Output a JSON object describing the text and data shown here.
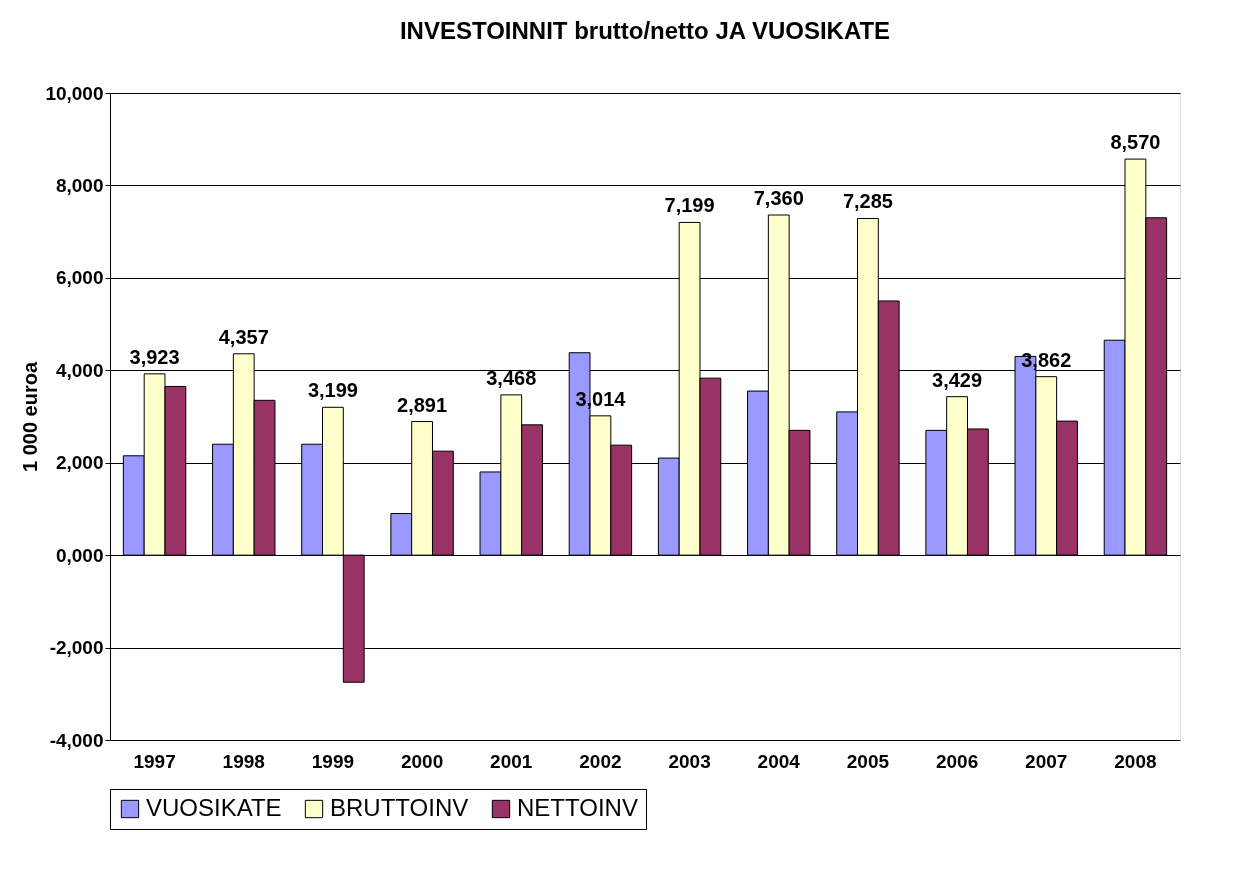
{
  "chart_data": {
    "type": "bar",
    "title": "INVESTOINNIT brutto/netto JA VUOSIKATE",
    "ylabel": "1 000 euroa",
    "categories": [
      "1997",
      "1998",
      "1999",
      "2000",
      "2001",
      "2002",
      "2003",
      "2004",
      "2005",
      "2006",
      "2007",
      "2008"
    ],
    "series": [
      {
        "name": "VUOSIKATE",
        "color": "#9999ff",
        "values": [
          2150,
          2400,
          2400,
          900,
          1800,
          4380,
          2100,
          3550,
          3100,
          2700,
          4300,
          4650
        ]
      },
      {
        "name": "BRUTTOINV",
        "color": "#ffffcc",
        "values": [
          3923,
          4357,
          3199,
          2891,
          3468,
          3014,
          7199,
          7360,
          7285,
          3429,
          3862,
          8570
        ],
        "value_labels": [
          "3,923",
          "4,357",
          "3,199",
          "2,891",
          "3,468",
          "3,014",
          "7,199",
          "7,360",
          "7,285",
          "3,429",
          "3,862",
          "8,570"
        ]
      },
      {
        "name": "NETTOINV",
        "color": "#993366",
        "values": [
          3650,
          3350,
          -2750,
          2250,
          2820,
          2380,
          3830,
          2700,
          5500,
          2730,
          2900,
          7300
        ]
      }
    ],
    "ylim": [
      -4000,
      10000
    ],
    "yticks": [
      {
        "value": -4000,
        "label": "-4,000"
      },
      {
        "value": -2000,
        "label": "-2,000"
      },
      {
        "value": 0,
        "label": "0,000"
      },
      {
        "value": 2000,
        "label": "2,000"
      },
      {
        "value": 4000,
        "label": "4,000"
      },
      {
        "value": 6000,
        "label": "6,000"
      },
      {
        "value": 8000,
        "label": "8,000"
      },
      {
        "value": 10000,
        "label": "10,000"
      }
    ],
    "grid": "y",
    "legend": "bottom"
  }
}
